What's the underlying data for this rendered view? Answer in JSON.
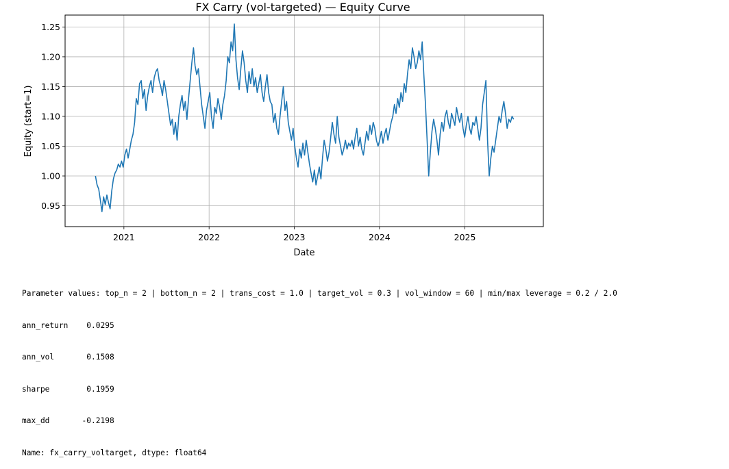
{
  "chart_data": {
    "type": "line",
    "title": "FX Carry (vol-targeted) — Equity Curve",
    "xlabel": "Date",
    "ylabel": "Equity (start=1)",
    "xlim": [
      "2020-04-24",
      "2025-12-03"
    ],
    "ylim": [
      0.915,
      1.27
    ],
    "grid": true,
    "x_ticks": [
      "2021",
      "2022",
      "2023",
      "2024",
      "2025"
    ],
    "y_ticks": [
      "0.95",
      "1.00",
      "1.05",
      "1.10",
      "1.15",
      "1.20",
      "1.25"
    ],
    "series": [
      {
        "color": "#1f77b4",
        "points": [
          [
            "2020-09-01",
            1.0
          ],
          [
            "2020-09-08",
            0.985
          ],
          [
            "2020-09-15",
            0.978
          ],
          [
            "2020-09-22",
            0.96
          ],
          [
            "2020-09-29",
            0.94
          ],
          [
            "2020-10-06",
            0.965
          ],
          [
            "2020-10-13",
            0.952
          ],
          [
            "2020-10-20",
            0.968
          ],
          [
            "2020-10-27",
            0.955
          ],
          [
            "2020-11-03",
            0.945
          ],
          [
            "2020-11-10",
            0.975
          ],
          [
            "2020-11-17",
            0.995
          ],
          [
            "2020-11-24",
            1.005
          ],
          [
            "2020-12-01",
            1.01
          ],
          [
            "2020-12-08",
            1.02
          ],
          [
            "2020-12-15",
            1.015
          ],
          [
            "2020-12-22",
            1.025
          ],
          [
            "2020-12-29",
            1.015
          ],
          [
            "2021-01-05",
            1.035
          ],
          [
            "2021-01-12",
            1.045
          ],
          [
            "2021-01-19",
            1.03
          ],
          [
            "2021-01-26",
            1.045
          ],
          [
            "2021-02-02",
            1.06
          ],
          [
            "2021-02-09",
            1.07
          ],
          [
            "2021-02-16",
            1.09
          ],
          [
            "2021-02-23",
            1.13
          ],
          [
            "2021-03-02",
            1.12
          ],
          [
            "2021-03-09",
            1.155
          ],
          [
            "2021-03-16",
            1.16
          ],
          [
            "2021-03-23",
            1.13
          ],
          [
            "2021-03-30",
            1.145
          ],
          [
            "2021-04-06",
            1.11
          ],
          [
            "2021-04-13",
            1.135
          ],
          [
            "2021-04-20",
            1.15
          ],
          [
            "2021-04-27",
            1.16
          ],
          [
            "2021-05-04",
            1.14
          ],
          [
            "2021-05-11",
            1.165
          ],
          [
            "2021-05-18",
            1.175
          ],
          [
            "2021-05-25",
            1.18
          ],
          [
            "2021-06-01",
            1.16
          ],
          [
            "2021-06-08",
            1.15
          ],
          [
            "2021-06-15",
            1.135
          ],
          [
            "2021-06-22",
            1.16
          ],
          [
            "2021-06-29",
            1.145
          ],
          [
            "2021-07-06",
            1.125
          ],
          [
            "2021-07-13",
            1.105
          ],
          [
            "2021-07-20",
            1.085
          ],
          [
            "2021-07-27",
            1.095
          ],
          [
            "2021-08-03",
            1.07
          ],
          [
            "2021-08-10",
            1.09
          ],
          [
            "2021-08-17",
            1.06
          ],
          [
            "2021-08-24",
            1.1
          ],
          [
            "2021-08-31",
            1.12
          ],
          [
            "2021-09-07",
            1.135
          ],
          [
            "2021-09-14",
            1.11
          ],
          [
            "2021-09-21",
            1.125
          ],
          [
            "2021-09-28",
            1.095
          ],
          [
            "2021-10-05",
            1.13
          ],
          [
            "2021-10-12",
            1.16
          ],
          [
            "2021-10-19",
            1.19
          ],
          [
            "2021-10-26",
            1.215
          ],
          [
            "2021-11-02",
            1.185
          ],
          [
            "2021-11-09",
            1.17
          ],
          [
            "2021-11-16",
            1.18
          ],
          [
            "2021-11-23",
            1.15
          ],
          [
            "2021-11-30",
            1.12
          ],
          [
            "2021-12-07",
            1.1
          ],
          [
            "2021-12-14",
            1.08
          ],
          [
            "2021-12-21",
            1.11
          ],
          [
            "2021-12-28",
            1.125
          ],
          [
            "2022-01-04",
            1.14
          ],
          [
            "2022-01-11",
            1.1
          ],
          [
            "2022-01-18",
            1.08
          ],
          [
            "2022-01-25",
            1.115
          ],
          [
            "2022-02-01",
            1.105
          ],
          [
            "2022-02-08",
            1.13
          ],
          [
            "2022-02-15",
            1.115
          ],
          [
            "2022-02-22",
            1.095
          ],
          [
            "2022-03-01",
            1.12
          ],
          [
            "2022-03-08",
            1.135
          ],
          [
            "2022-03-15",
            1.16
          ],
          [
            "2022-03-22",
            1.2
          ],
          [
            "2022-03-29",
            1.19
          ],
          [
            "2022-04-05",
            1.225
          ],
          [
            "2022-04-12",
            1.21
          ],
          [
            "2022-04-19",
            1.255
          ],
          [
            "2022-04-26",
            1.195
          ],
          [
            "2022-05-03",
            1.165
          ],
          [
            "2022-05-10",
            1.145
          ],
          [
            "2022-05-17",
            1.18
          ],
          [
            "2022-05-24",
            1.21
          ],
          [
            "2022-05-31",
            1.19
          ],
          [
            "2022-06-07",
            1.16
          ],
          [
            "2022-06-14",
            1.14
          ],
          [
            "2022-06-21",
            1.175
          ],
          [
            "2022-06-28",
            1.155
          ],
          [
            "2022-07-05",
            1.18
          ],
          [
            "2022-07-12",
            1.15
          ],
          [
            "2022-07-19",
            1.165
          ],
          [
            "2022-07-26",
            1.14
          ],
          [
            "2022-08-02",
            1.155
          ],
          [
            "2022-08-09",
            1.17
          ],
          [
            "2022-08-16",
            1.14
          ],
          [
            "2022-08-23",
            1.125
          ],
          [
            "2022-08-30",
            1.15
          ],
          [
            "2022-09-06",
            1.17
          ],
          [
            "2022-09-13",
            1.14
          ],
          [
            "2022-09-20",
            1.125
          ],
          [
            "2022-09-27",
            1.12
          ],
          [
            "2022-10-04",
            1.09
          ],
          [
            "2022-10-11",
            1.105
          ],
          [
            "2022-10-18",
            1.08
          ],
          [
            "2022-10-25",
            1.07
          ],
          [
            "2022-11-01",
            1.1
          ],
          [
            "2022-11-08",
            1.125
          ],
          [
            "2022-11-15",
            1.15
          ],
          [
            "2022-11-22",
            1.11
          ],
          [
            "2022-11-29",
            1.125
          ],
          [
            "2022-12-06",
            1.09
          ],
          [
            "2022-12-13",
            1.075
          ],
          [
            "2022-12-20",
            1.06
          ],
          [
            "2022-12-27",
            1.08
          ],
          [
            "2023-01-03",
            1.05
          ],
          [
            "2023-01-10",
            1.03
          ],
          [
            "2023-01-17",
            1.015
          ],
          [
            "2023-01-24",
            1.045
          ],
          [
            "2023-01-31",
            1.03
          ],
          [
            "2023-02-07",
            1.055
          ],
          [
            "2023-02-14",
            1.035
          ],
          [
            "2023-02-21",
            1.06
          ],
          [
            "2023-02-28",
            1.04
          ],
          [
            "2023-03-07",
            1.02
          ],
          [
            "2023-03-14",
            1.005
          ],
          [
            "2023-03-21",
            0.99
          ],
          [
            "2023-03-28",
            1.01
          ],
          [
            "2023-04-04",
            0.985
          ],
          [
            "2023-04-11",
            1.0
          ],
          [
            "2023-04-18",
            1.015
          ],
          [
            "2023-04-25",
            0.995
          ],
          [
            "2023-05-02",
            1.03
          ],
          [
            "2023-05-09",
            1.06
          ],
          [
            "2023-05-16",
            1.045
          ],
          [
            "2023-05-23",
            1.025
          ],
          [
            "2023-05-30",
            1.04
          ],
          [
            "2023-06-06",
            1.065
          ],
          [
            "2023-06-13",
            1.09
          ],
          [
            "2023-06-20",
            1.07
          ],
          [
            "2023-06-27",
            1.055
          ],
          [
            "2023-07-04",
            1.1
          ],
          [
            "2023-07-11",
            1.065
          ],
          [
            "2023-07-18",
            1.05
          ],
          [
            "2023-07-25",
            1.035
          ],
          [
            "2023-08-01",
            1.045
          ],
          [
            "2023-08-08",
            1.06
          ],
          [
            "2023-08-15",
            1.045
          ],
          [
            "2023-08-22",
            1.055
          ],
          [
            "2023-08-29",
            1.05
          ],
          [
            "2023-09-05",
            1.06
          ],
          [
            "2023-09-12",
            1.045
          ],
          [
            "2023-09-19",
            1.065
          ],
          [
            "2023-09-26",
            1.08
          ],
          [
            "2023-10-03",
            1.05
          ],
          [
            "2023-10-10",
            1.065
          ],
          [
            "2023-10-17",
            1.045
          ],
          [
            "2023-10-24",
            1.035
          ],
          [
            "2023-10-31",
            1.055
          ],
          [
            "2023-11-07",
            1.075
          ],
          [
            "2023-11-14",
            1.06
          ],
          [
            "2023-11-21",
            1.085
          ],
          [
            "2023-11-28",
            1.07
          ],
          [
            "2023-12-05",
            1.09
          ],
          [
            "2023-12-12",
            1.08
          ],
          [
            "2023-12-19",
            1.06
          ],
          [
            "2023-12-26",
            1.05
          ],
          [
            "2024-01-02",
            1.06
          ],
          [
            "2024-01-09",
            1.075
          ],
          [
            "2024-01-16",
            1.055
          ],
          [
            "2024-01-23",
            1.07
          ],
          [
            "2024-01-30",
            1.08
          ],
          [
            "2024-02-06",
            1.06
          ],
          [
            "2024-02-13",
            1.075
          ],
          [
            "2024-02-20",
            1.09
          ],
          [
            "2024-02-27",
            1.1
          ],
          [
            "2024-03-05",
            1.12
          ],
          [
            "2024-03-12",
            1.105
          ],
          [
            "2024-03-19",
            1.13
          ],
          [
            "2024-03-26",
            1.115
          ],
          [
            "2024-04-02",
            1.14
          ],
          [
            "2024-04-09",
            1.125
          ],
          [
            "2024-04-16",
            1.155
          ],
          [
            "2024-04-23",
            1.14
          ],
          [
            "2024-04-30",
            1.17
          ],
          [
            "2024-05-07",
            1.195
          ],
          [
            "2024-05-14",
            1.18
          ],
          [
            "2024-05-21",
            1.215
          ],
          [
            "2024-05-28",
            1.2
          ],
          [
            "2024-06-04",
            1.18
          ],
          [
            "2024-06-11",
            1.19
          ],
          [
            "2024-06-18",
            1.21
          ],
          [
            "2024-06-25",
            1.195
          ],
          [
            "2024-07-02",
            1.225
          ],
          [
            "2024-07-09",
            1.17
          ],
          [
            "2024-07-16",
            1.12
          ],
          [
            "2024-07-23",
            1.06
          ],
          [
            "2024-07-30",
            1.0
          ],
          [
            "2024-08-06",
            1.04
          ],
          [
            "2024-08-13",
            1.075
          ],
          [
            "2024-08-20",
            1.095
          ],
          [
            "2024-08-27",
            1.08
          ],
          [
            "2024-09-03",
            1.06
          ],
          [
            "2024-09-10",
            1.035
          ],
          [
            "2024-09-17",
            1.07
          ],
          [
            "2024-09-24",
            1.09
          ],
          [
            "2024-10-01",
            1.075
          ],
          [
            "2024-10-08",
            1.1
          ],
          [
            "2024-10-15",
            1.11
          ],
          [
            "2024-10-22",
            1.09
          ],
          [
            "2024-10-29",
            1.08
          ],
          [
            "2024-11-05",
            1.105
          ],
          [
            "2024-11-12",
            1.095
          ],
          [
            "2024-11-19",
            1.085
          ],
          [
            "2024-11-26",
            1.115
          ],
          [
            "2024-12-03",
            1.1
          ],
          [
            "2024-12-10",
            1.09
          ],
          [
            "2024-12-17",
            1.105
          ],
          [
            "2024-12-24",
            1.08
          ],
          [
            "2024-12-31",
            1.065
          ],
          [
            "2025-01-07",
            1.085
          ],
          [
            "2025-01-14",
            1.1
          ],
          [
            "2025-01-21",
            1.08
          ],
          [
            "2025-01-28",
            1.07
          ],
          [
            "2025-02-04",
            1.09
          ],
          [
            "2025-02-11",
            1.085
          ],
          [
            "2025-02-18",
            1.1
          ],
          [
            "2025-02-25",
            1.08
          ],
          [
            "2025-03-04",
            1.06
          ],
          [
            "2025-03-11",
            1.08
          ],
          [
            "2025-03-18",
            1.12
          ],
          [
            "2025-03-25",
            1.14
          ],
          [
            "2025-04-01",
            1.16
          ],
          [
            "2025-04-08",
            1.06
          ],
          [
            "2025-04-15",
            1.0
          ],
          [
            "2025-04-22",
            1.03
          ],
          [
            "2025-04-29",
            1.05
          ],
          [
            "2025-05-06",
            1.04
          ],
          [
            "2025-05-13",
            1.06
          ],
          [
            "2025-05-20",
            1.08
          ],
          [
            "2025-05-27",
            1.1
          ],
          [
            "2025-06-03",
            1.09
          ],
          [
            "2025-06-10",
            1.11
          ],
          [
            "2025-06-17",
            1.125
          ],
          [
            "2025-06-24",
            1.105
          ],
          [
            "2025-07-01",
            1.08
          ],
          [
            "2025-07-08",
            1.095
          ],
          [
            "2025-07-15",
            1.09
          ],
          [
            "2025-07-22",
            1.1
          ],
          [
            "2025-07-29",
            1.095
          ]
        ]
      }
    ]
  },
  "output": {
    "lines": [
      "Parameter values: top_n = 2 | bottom_n = 2 | trans_cost = 1.0 | target_vol = 0.3 | vol_window = 60 | min/max leverage = 0.2 / 2.0",
      "ann_return    0.0295",
      "ann_vol       0.1508",
      "sharpe        0.1959",
      "max_dd       -0.2198",
      "Name: fx_carry_voltarget, dtype: float64"
    ]
  }
}
